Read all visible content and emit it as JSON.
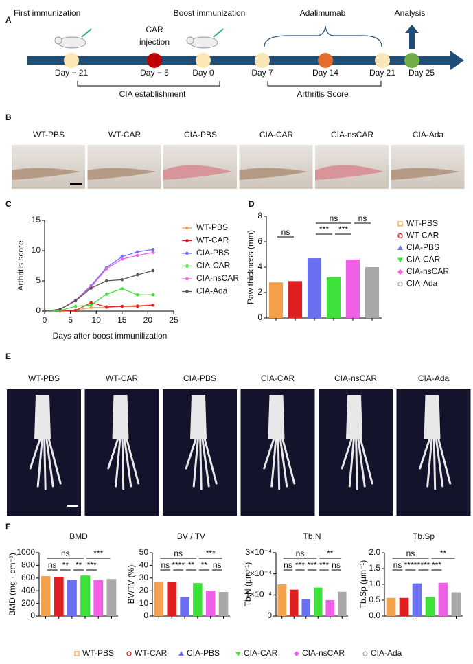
{
  "panel_labels": [
    "A",
    "B",
    "C",
    "D",
    "E",
    "F"
  ],
  "timeline": {
    "phases": [
      "First immunization",
      "Boost immunization",
      "Adalimumab",
      "Analysis"
    ],
    "car_injection": [
      "CAR",
      "injection"
    ],
    "days": [
      "Day − 21",
      "Day − 5",
      "Day 0",
      "Day 7",
      "Day 14",
      "Day 21",
      "Day 25"
    ],
    "periods": [
      "CIA establishment",
      "Arthritis Score"
    ]
  },
  "photo_labels": [
    "WT-PBS",
    "WT-CAR",
    "CIA-PBS",
    "CIA-CAR",
    "CIA-nsCAR",
    "CIA-Ada"
  ],
  "ct_labels": [
    "WT-PBS",
    "WT-CAR",
    "CIA-PBS",
    "CIA-CAR",
    "CIA-nsCAR",
    "CIA-Ada"
  ],
  "chart_data": [
    {
      "type": "line",
      "x_label": "Days after boost immunilization",
      "y_label": "Arthritis score",
      "x": [
        0,
        3,
        6,
        9,
        12,
        15,
        18,
        21
      ],
      "series": [
        {
          "name": "WT-PBS",
          "color": "#f5a04a",
          "values": [
            0,
            0,
            0.1,
            0.6,
            0.6,
            0.8,
            0.9,
            1.0
          ]
        },
        {
          "name": "WT-CAR",
          "color": "#e02020",
          "values": [
            0,
            0,
            0.1,
            1.4,
            0.7,
            0.8,
            0.8,
            1.0
          ]
        },
        {
          "name": "CIA-PBS",
          "color": "#6b6ff2",
          "values": [
            0,
            0.3,
            1.8,
            4.2,
            7.2,
            9.0,
            9.8,
            10.2
          ]
        },
        {
          "name": "CIA-CAR",
          "color": "#3ee03a",
          "values": [
            0,
            0.1,
            0.8,
            1.0,
            2.8,
            3.7,
            2.7,
            2.7
          ]
        },
        {
          "name": "CIA-nsCAR",
          "color": "#f060e6",
          "values": [
            0,
            0.3,
            1.8,
            4.0,
            7.0,
            8.6,
            9.2,
            9.7
          ]
        },
        {
          "name": "CIA-Ada",
          "color": "#555555",
          "values": [
            0,
            0.3,
            1.7,
            3.8,
            5.0,
            5.2,
            6.0,
            6.7
          ]
        }
      ],
      "xlim": [
        0,
        25
      ],
      "xticks": [
        0,
        5,
        10,
        15,
        20,
        25
      ],
      "ylim": [
        0,
        15
      ],
      "yticks": [
        0,
        5,
        10,
        15
      ]
    },
    {
      "type": "bar",
      "y_label": "Paw thickness (mm)",
      "categories": [
        "WT-PBS",
        "WT-CAR",
        "CIA-PBS",
        "CIA-CAR",
        "CIA-nsCAR",
        "CIA-Ada"
      ],
      "values": [
        2.8,
        2.9,
        4.7,
        3.2,
        4.6,
        4.0
      ],
      "colors": [
        "#f5a04a",
        "#e02020",
        "#6b6ff2",
        "#3ee03a",
        "#f060e6",
        "#a8a8a8"
      ],
      "ylim": [
        0,
        8
      ],
      "yticks": [
        0,
        2,
        4,
        6,
        8
      ],
      "annotations": [
        "ns",
        "***",
        "ns",
        "***",
        "ns"
      ]
    },
    {
      "type": "bar",
      "title": "BMD",
      "y_label": "BMD (mg · cm⁻³)",
      "values": [
        630,
        620,
        570,
        640,
        570,
        585
      ],
      "colors": [
        "#f5a04a",
        "#e02020",
        "#6b6ff2",
        "#3ee03a",
        "#f060e6",
        "#a8a8a8"
      ],
      "ylim": [
        0,
        1000
      ],
      "yticks": [
        0,
        200,
        400,
        600,
        800,
        1000
      ],
      "annotations": [
        "ns",
        "***",
        "ns",
        "**",
        "**",
        "***"
      ]
    },
    {
      "type": "bar",
      "title": "BV / TV",
      "y_label": "BV/TV (%)",
      "values": [
        27,
        27,
        15,
        26,
        20,
        19
      ],
      "colors": [
        "#f5a04a",
        "#e02020",
        "#6b6ff2",
        "#3ee03a",
        "#f060e6",
        "#a8a8a8"
      ],
      "ylim": [
        0,
        50
      ],
      "yticks": [
        0,
        10,
        20,
        30,
        40,
        50
      ],
      "annotations": [
        "ns",
        "***",
        "ns",
        "****",
        "**",
        "**",
        "ns"
      ]
    },
    {
      "type": "bar",
      "title": "Tb.N",
      "y_label": "Tb.N (μm⁻¹)",
      "values": [
        0.00015,
        0.000125,
        8e-05,
        0.000135,
        7.5e-05,
        0.000115
      ],
      "colors": [
        "#f5a04a",
        "#e02020",
        "#6b6ff2",
        "#3ee03a",
        "#f060e6",
        "#a8a8a8"
      ],
      "ylim": [
        0,
        0.0003
      ],
      "yticks": [
        0,
        {
          "value": 0.0001,
          "label": "1×10⁻⁴"
        },
        {
          "value": 0.0002,
          "label": "2×10⁻⁴"
        },
        {
          "value": 0.0003,
          "label": "3×10⁻⁴"
        }
      ],
      "annotations": [
        "ns",
        "**",
        "ns",
        "***",
        "***",
        "***",
        "ns"
      ]
    },
    {
      "type": "bar",
      "title": "Tb.Sp",
      "y_label": "Tb.Sp (μm⁻¹)",
      "values": [
        0.57,
        0.57,
        1.03,
        0.6,
        1.05,
        0.75
      ],
      "colors": [
        "#f5a04a",
        "#e02020",
        "#6b6ff2",
        "#3ee03a",
        "#f060e6",
        "#a8a8a8"
      ],
      "ylim": [
        0,
        2
      ],
      "yticks": [
        {
          "value": 0,
          "label": "0.0"
        },
        {
          "value": 0.5,
          "label": "0.5"
        },
        {
          "value": 1,
          "label": "1.0"
        },
        {
          "value": 1.5,
          "label": "1.5"
        },
        {
          "value": 2,
          "label": "2.0"
        }
      ],
      "annotations": [
        "ns",
        "**",
        "ns",
        "****",
        "****",
        "***"
      ]
    }
  ],
  "legend_f": [
    "WT-PBS",
    "WT-CAR",
    "CIA-PBS",
    "CIA-CAR",
    "CIA-nsCAR",
    "CIA-Ada"
  ]
}
